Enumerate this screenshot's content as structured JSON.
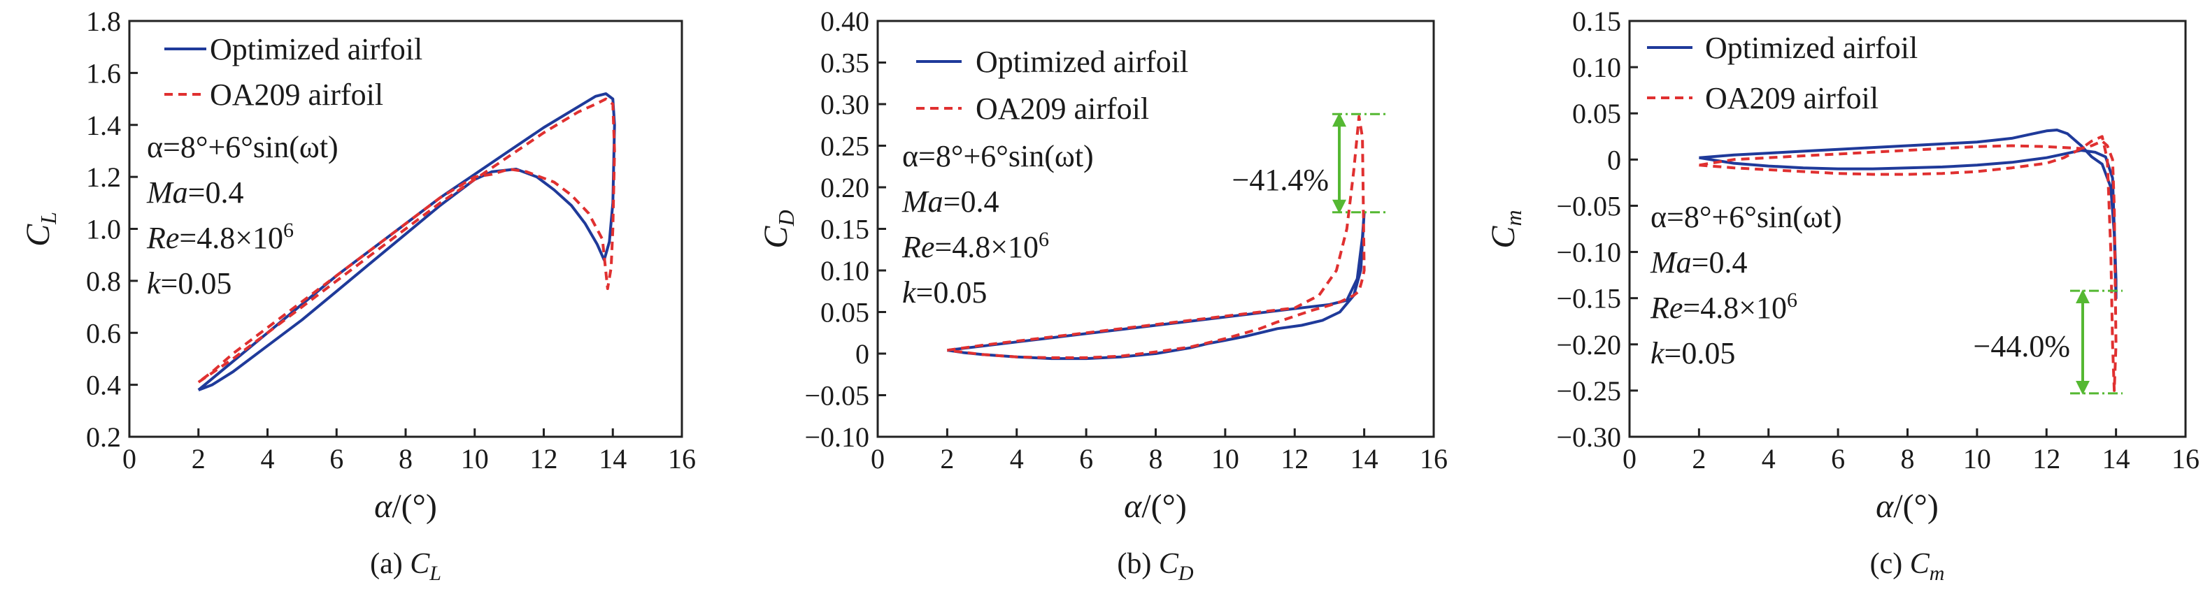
{
  "figure": {
    "legend_names": [
      "Optimized airfoil",
      "OA209 airfoil"
    ],
    "colors": {
      "optimized": "#1f3a9a",
      "oa209": "#e03030",
      "dim": "#55b832"
    }
  },
  "chart_data": [
    {
      "id": "cl",
      "type": "line",
      "title": "",
      "caption_prefix": "(a)",
      "caption_symbol": "C",
      "caption_sub": "L",
      "ylabel_symbol": "C",
      "ylabel_sub": "L",
      "xlabel_main": "α",
      "xlabel_unit": "/(°)",
      "xlim": [
        0,
        16
      ],
      "ylim": [
        0.2,
        1.8
      ],
      "xticks": [
        "0",
        "2",
        "4",
        "6",
        "8",
        "10",
        "12",
        "14",
        "16"
      ],
      "yticks": [
        "0.2",
        "0.4",
        "0.6",
        "0.8",
        "1.0",
        "1.2",
        "1.4",
        "1.6",
        "1.8"
      ],
      "legend": {
        "placement": "top-left",
        "entries": [
          "Optimized airfoil",
          "OA209 airfoil"
        ]
      },
      "annotations": {
        "alpha_eq": "α=8°+6°sin(ωt)",
        "ma_sym": "Ma",
        "ma_val": "=0.4",
        "re_sym": "Re",
        "re_mant": "=4.8×10",
        "re_exp": "6",
        "k_sym": "k",
        "k_val": "=0.05"
      },
      "series": [
        {
          "name": "Optimized airfoil",
          "x": [
            2.0,
            3,
            4,
            5,
            6,
            7,
            8,
            9,
            10,
            11,
            12,
            13,
            13.5,
            13.8,
            14.0,
            14.05,
            14.0,
            13.9,
            13.75,
            13.55,
            13.2,
            12.8,
            12.3,
            11.8,
            11.2,
            10.5,
            10,
            9,
            8,
            7,
            6,
            5,
            4,
            3,
            2.4,
            2.0
          ],
          "y": [
            0.38,
            0.49,
            0.6,
            0.71,
            0.82,
            0.92,
            1.02,
            1.12,
            1.21,
            1.3,
            1.39,
            1.47,
            1.51,
            1.52,
            1.5,
            1.4,
            1.1,
            0.95,
            0.88,
            0.94,
            1.02,
            1.09,
            1.15,
            1.2,
            1.23,
            1.22,
            1.19,
            1.09,
            0.98,
            0.87,
            0.76,
            0.65,
            0.55,
            0.45,
            0.4,
            0.38
          ]
        },
        {
          "name": "OA209 airfoil",
          "x": [
            2.0,
            3,
            4,
            5,
            6,
            7,
            8,
            9,
            10,
            11,
            12,
            13,
            13.5,
            13.8,
            14.0,
            14.05,
            14.0,
            13.95,
            13.85,
            13.7,
            13.3,
            12.8,
            12.3,
            11.5,
            11.0,
            10.5,
            10,
            9,
            8,
            7,
            6,
            5,
            4,
            3,
            2.4,
            2.0
          ],
          "y": [
            0.41,
            0.5,
            0.6,
            0.7,
            0.8,
            0.9,
            1.0,
            1.1,
            1.19,
            1.28,
            1.37,
            1.45,
            1.48,
            1.5,
            1.48,
            1.3,
            1.0,
            0.85,
            0.77,
            0.96,
            1.06,
            1.13,
            1.18,
            1.22,
            1.23,
            1.21,
            1.2,
            1.12,
            1.02,
            0.92,
            0.82,
            0.72,
            0.62,
            0.52,
            0.45,
            0.41
          ]
        }
      ]
    },
    {
      "id": "cd",
      "type": "line",
      "title": "",
      "caption_prefix": "(b)",
      "caption_symbol": "C",
      "caption_sub": "D",
      "ylabel_symbol": "C",
      "ylabel_sub": "D",
      "xlabel_main": "α",
      "xlabel_unit": "/(°)",
      "xlim": [
        0,
        16
      ],
      "ylim": [
        -0.1,
        0.4
      ],
      "xticks": [
        "0",
        "2",
        "4",
        "6",
        "8",
        "10",
        "12",
        "14",
        "16"
      ],
      "yticks": [
        "−0.10",
        "−0.05",
        "0",
        "0.05",
        "0.10",
        "0.15",
        "0.20",
        "0.25",
        "0.30",
        "0.35",
        "0.40"
      ],
      "legend": {
        "placement": "top-left",
        "entries": [
          "Optimized airfoil",
          "OA209 airfoil"
        ]
      },
      "annotations": {
        "alpha_eq": "α=8°+6°sin(ωt)",
        "ma_sym": "Ma",
        "ma_val": "=0.4",
        "re_sym": "Re",
        "re_mant": "=4.8×10",
        "re_exp": "6",
        "k_sym": "k",
        "k_val": "=0.05",
        "reduction": "−41.4%",
        "reduction_top": 0.288,
        "reduction_bottom": 0.17
      },
      "series": [
        {
          "name": "Optimized airfoil",
          "x": [
            2.0,
            3,
            4,
            5,
            6,
            7,
            8,
            9,
            10,
            11,
            12,
            13,
            13.5,
            13.8,
            13.95,
            14.0,
            13.9,
            13.7,
            13.3,
            12.8,
            12.2,
            11.5,
            11,
            10.5,
            10,
            9.5,
            9,
            8,
            7,
            6,
            5,
            4,
            3,
            2.5,
            2.0
          ],
          "y": [
            0.004,
            0.009,
            0.014,
            0.019,
            0.024,
            0.029,
            0.034,
            0.039,
            0.044,
            0.049,
            0.054,
            0.059,
            0.064,
            0.09,
            0.14,
            0.17,
            0.1,
            0.07,
            0.05,
            0.04,
            0.034,
            0.03,
            0.025,
            0.02,
            0.016,
            0.012,
            0.007,
            0.0,
            -0.004,
            -0.006,
            -0.006,
            -0.004,
            -0.001,
            0.001,
            0.004
          ]
        },
        {
          "name": "OA209 airfoil",
          "x": [
            2.0,
            3,
            4,
            5,
            6,
            7,
            8,
            9,
            10,
            11,
            12,
            12.7,
            13.2,
            13.5,
            13.7,
            13.85,
            13.95,
            14.0,
            13.95,
            13.85,
            13.7,
            13.5,
            13.3,
            13.0,
            12.5,
            12,
            11.5,
            11,
            10,
            9,
            8,
            7,
            6,
            5,
            4,
            3,
            2.0
          ],
          "y": [
            0.004,
            0.01,
            0.015,
            0.02,
            0.025,
            0.03,
            0.035,
            0.04,
            0.045,
            0.05,
            0.055,
            0.07,
            0.1,
            0.15,
            0.22,
            0.285,
            0.26,
            0.1,
            0.09,
            0.075,
            0.07,
            0.066,
            0.062,
            0.058,
            0.052,
            0.045,
            0.038,
            0.03,
            0.018,
            0.008,
            0.002,
            -0.003,
            -0.005,
            -0.005,
            -0.004,
            -0.001,
            0.004
          ]
        }
      ]
    },
    {
      "id": "cm",
      "type": "line",
      "title": "",
      "caption_prefix": "(c)",
      "caption_symbol": "C",
      "caption_sub": "m",
      "ylabel_symbol": "C",
      "ylabel_sub": "m",
      "xlabel_main": "α",
      "xlabel_unit": "/(°)",
      "xlim": [
        0,
        16
      ],
      "ylim": [
        -0.3,
        0.15
      ],
      "xticks": [
        "0",
        "2",
        "4",
        "6",
        "8",
        "10",
        "12",
        "14",
        "16"
      ],
      "yticks": [
        "−0.30",
        "−0.25",
        "−0.20",
        "−0.15",
        "−0.10",
        "−0.05",
        "0",
        "0.05",
        "0.10",
        "0.15"
      ],
      "legend": {
        "placement": "top-left",
        "entries": [
          "Optimized airfoil",
          "OA209 airfoil"
        ]
      },
      "annotations": {
        "alpha_eq": "α=8°+6°sin(ωt)",
        "ma_sym": "Ma",
        "ma_val": "=0.4",
        "re_sym": "Re",
        "re_mant": "=4.8×10",
        "re_exp": "6",
        "k_sym": "k",
        "k_val": "=0.05",
        "reduction": "−44.0%",
        "reduction_top": -0.142,
        "reduction_bottom": -0.253
      },
      "series": [
        {
          "name": "Optimized airfoil",
          "x": [
            2.0,
            3,
            4,
            5,
            6,
            7,
            8,
            9,
            10,
            10.5,
            11,
            11.5,
            12,
            12.3,
            12.6,
            13,
            13.3,
            13.6,
            13.85,
            13.95,
            14.0,
            14.0,
            13.9,
            13.7,
            13.4,
            13.0,
            12.5,
            12,
            11,
            10,
            9,
            8,
            7,
            6,
            5,
            4,
            3,
            2.0
          ],
          "y": [
            0.002,
            0.005,
            0.007,
            0.009,
            0.011,
            0.013,
            0.015,
            0.017,
            0.019,
            0.021,
            0.023,
            0.027,
            0.031,
            0.032,
            0.028,
            0.015,
            0.003,
            -0.005,
            -0.03,
            -0.08,
            -0.15,
            -0.13,
            -0.02,
            0.003,
            0.008,
            0.01,
            0.006,
            0.002,
            -0.003,
            -0.006,
            -0.008,
            -0.009,
            -0.01,
            -0.01,
            -0.009,
            -0.007,
            -0.004,
            0.002
          ]
        },
        {
          "name": "OA209 airfoil",
          "x": [
            2.0,
            3,
            4,
            5,
            6,
            7,
            8,
            9,
            10,
            11,
            12,
            12.5,
            13,
            13.3,
            13.6,
            13.75,
            13.85,
            13.9,
            13.95,
            14.0,
            13.95,
            13.9,
            13.75,
            13.6,
            13.3,
            13.0,
            12.5,
            12,
            11,
            10,
            9,
            8,
            7,
            6,
            5,
            4,
            3,
            2.0
          ],
          "y": [
            -0.006,
            -0.009,
            -0.011,
            -0.013,
            -0.015,
            -0.016,
            -0.016,
            -0.015,
            -0.013,
            -0.009,
            -0.004,
            0.002,
            0.012,
            0.02,
            0.025,
            0.0,
            -0.1,
            -0.2,
            -0.25,
            -0.2,
            -0.05,
            0.0,
            0.015,
            0.02,
            0.015,
            0.012,
            0.013,
            0.014,
            0.015,
            0.014,
            0.012,
            0.01,
            0.008,
            0.006,
            0.004,
            0.002,
            0.0,
            -0.006
          ]
        }
      ]
    }
  ]
}
